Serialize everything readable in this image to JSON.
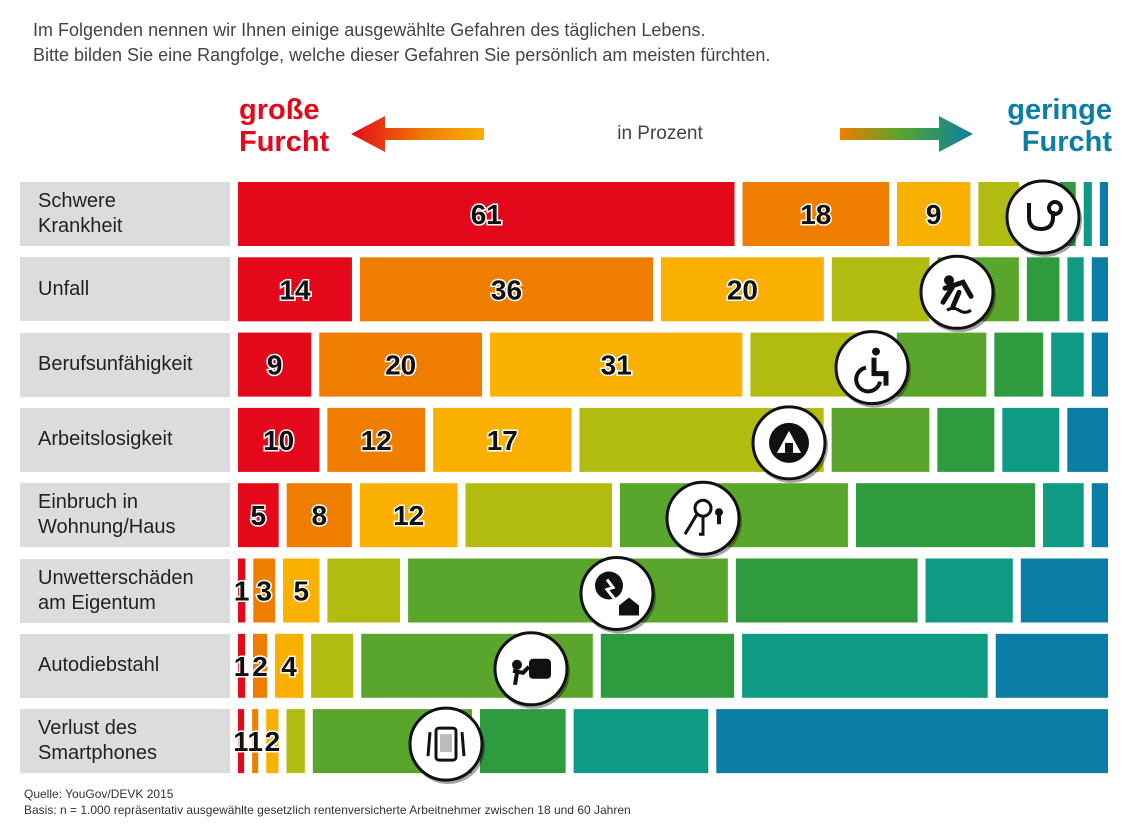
{
  "intro": {
    "line1": "Im Folgenden nennen wir Ihnen einige ausgewählte Gefahren des täglichen Lebens.",
    "line2": "Bitte bilden Sie eine Rangfolge, welche dieser Gefahren Sie persönlich am meisten fürchten."
  },
  "legend": {
    "left_line1": "große",
    "left_line2": "Furcht",
    "right_line1": "geringe",
    "right_line2": "Furcht",
    "unit": "in Prozent"
  },
  "colors": {
    "rank1": "#e3091b",
    "rank2": "#ee7d00",
    "rank3": "#f9b000",
    "rank4": "#b2bb0f",
    "rank5": "#5aa52c",
    "rank6": "#2e9b3e",
    "rank7": "#0e9a83",
    "rank8": "#0a7ea4",
    "label_bg": "#dcdcdc"
  },
  "chart_data": {
    "type": "bar",
    "stacked": true,
    "orientation": "horizontal",
    "value_unit": "Prozent",
    "categories": [
      "Schwere Krankheit",
      "Unfall",
      "Berufsunfähigkeit",
      "Arbeitslosigkeit",
      "Einbruch in Wohnung/Haus",
      "Unwetterschäden am Eigentum",
      "Autodiebstahl",
      "Verlust des Smartphones"
    ],
    "category_lines": [
      [
        "Schwere",
        "Krankheit"
      ],
      [
        "Unfall"
      ],
      [
        "Berufsunfähigkeit"
      ],
      [
        "Arbeitslosigkeit"
      ],
      [
        "Einbruch in",
        "Wohnung/Haus"
      ],
      [
        "Unwetterschäden",
        "am Eigentum"
      ],
      [
        "Autodiebstahl"
      ],
      [
        "Verlust des",
        "Smartphones"
      ]
    ],
    "icons": [
      "stethoscope-icon",
      "slip-fall-icon",
      "wheelchair-icon",
      "employment-agency-icon",
      "burglary-icon",
      "storm-house-icon",
      "car-theft-icon",
      "smartphone-loss-icon"
    ],
    "rows": [
      [
        61,
        18,
        9,
        5,
        3,
        2,
        1,
        1
      ],
      [
        14,
        36,
        20,
        12,
        10,
        4,
        2,
        2
      ],
      [
        9,
        20,
        31,
        17,
        11,
        6,
        4,
        2
      ],
      [
        10,
        12,
        17,
        30,
        12,
        7,
        7,
        5
      ],
      [
        5,
        8,
        12,
        18,
        28,
        22,
        5,
        2
      ],
      [
        1,
        3,
        5,
        10,
        44,
        25,
        12,
        12
      ],
      [
        1,
        2,
        4,
        6,
        33,
        19,
        35,
        16
      ],
      [
        1,
        1,
        2,
        3,
        26,
        14,
        22,
        64
      ]
    ],
    "labeled_ranks": [
      [
        true,
        true,
        true,
        false,
        false,
        false,
        false,
        false
      ],
      [
        true,
        true,
        true,
        false,
        false,
        false,
        false,
        false
      ],
      [
        true,
        true,
        true,
        false,
        false,
        false,
        false,
        false
      ],
      [
        true,
        true,
        true,
        false,
        false,
        false,
        false,
        false
      ],
      [
        true,
        true,
        true,
        false,
        false,
        false,
        false,
        false
      ],
      [
        true,
        true,
        true,
        false,
        false,
        false,
        false,
        false
      ],
      [
        true,
        true,
        true,
        false,
        false,
        false,
        false,
        false
      ],
      [
        true,
        true,
        true,
        false,
        false,
        false,
        false,
        false
      ]
    ]
  },
  "source": {
    "line1": "Quelle: YouGov/DEVK 2015",
    "line2": "Basis: n = 1.000 repräsentativ ausgewählte gesetzlich rentenversicherte Arbeitnehmer zwischen 18 und 60 Jahren"
  }
}
